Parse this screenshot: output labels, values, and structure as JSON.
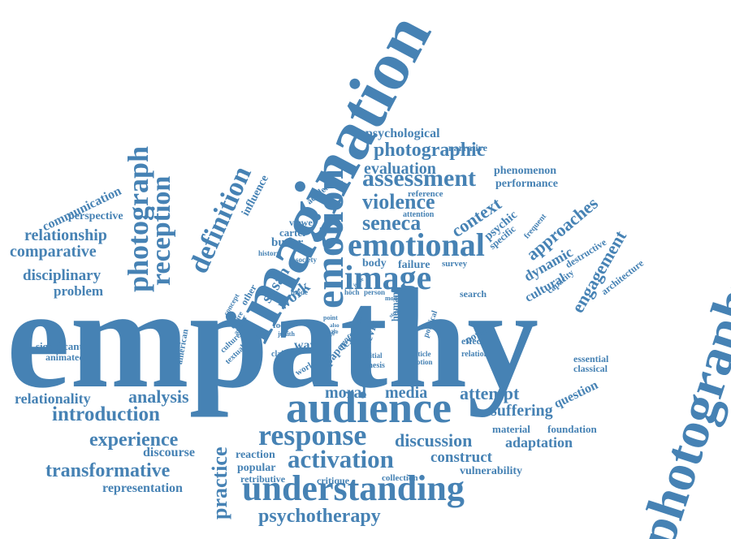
{
  "colors": {
    "text": "#4682b4",
    "background": "#ffffff"
  },
  "words": [
    "empathy",
    "imagination",
    "photography",
    "audience",
    "understanding",
    "emotional",
    "response",
    "activation",
    "emotion",
    "image",
    "photograph",
    "reception",
    "definition",
    "assessment",
    "violence",
    "seneca",
    "photographic",
    "evaluation",
    "psychotherapy",
    "introduction",
    "experience",
    "transformative",
    "relationality",
    "analysis",
    "practice",
    "discussion",
    "attempt",
    "suffering",
    "media",
    "moral",
    "approaches",
    "engagement",
    "context",
    "psychological",
    "communication",
    "perspective",
    "relationship",
    "comparative",
    "disciplinary",
    "problem",
    "significant",
    "animated",
    "representation",
    "discourse",
    "reaction",
    "popular",
    "retributive",
    "critique",
    "collection",
    "construct",
    "vulnerability",
    "adaptation",
    "foundation",
    "material",
    "question",
    "essential",
    "classical",
    "phenomenon",
    "performance",
    "narrative",
    "reference",
    "attention",
    "psychic",
    "specific",
    "dynamic",
    "cultural",
    "destructive",
    "frequent",
    "capacity",
    "architecture",
    "influence",
    "academic",
    "butler",
    "carter",
    "susan",
    "work",
    "body",
    "failure",
    "survey",
    "search",
    "novel",
    "effect",
    "relation",
    "notion",
    "article",
    "kevin",
    "human",
    "political",
    "thesis",
    "initial",
    "paper",
    "text",
    "way",
    "claim",
    "world",
    "offer",
    "focus",
    "judith",
    "author",
    "culture",
    "textual",
    "concept",
    "desire",
    "other",
    "mode",
    "history",
    "society",
    "viewer",
    "american",
    "höch",
    "person",
    "model",
    "point",
    "also",
    "case",
    "issue",
    "social",
    "logic",
    "study"
  ]
}
